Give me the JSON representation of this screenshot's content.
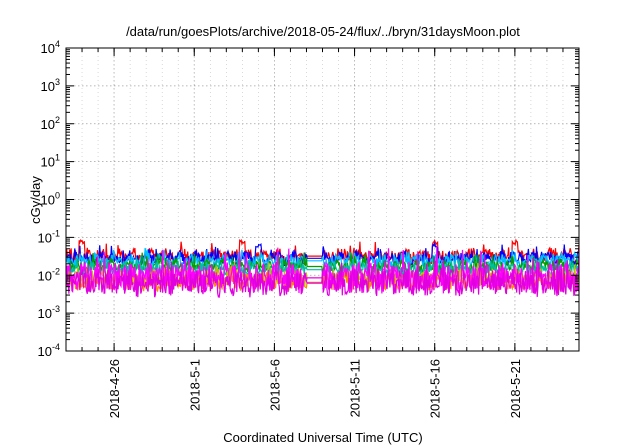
{
  "chart_data": {
    "type": "line",
    "title": "/data/run/goesPlots/archive/2018-05-24/flux/../bryn/31daysMoon.plot",
    "xlabel": "Coordinated Universal Time (UTC)",
    "ylabel": "cGy/day",
    "y_scale": "log",
    "ylim": [
      0.0001,
      10000
    ],
    "y_ticks": [
      {
        "value": 0.0001,
        "base": "10",
        "exp": "-4"
      },
      {
        "value": 0.001,
        "base": "10",
        "exp": "-3"
      },
      {
        "value": 0.01,
        "base": "10",
        "exp": "-2"
      },
      {
        "value": 0.1,
        "base": "10",
        "exp": "-1"
      },
      {
        "value": 1,
        "base": "10",
        "exp": "0"
      },
      {
        "value": 10,
        "base": "10",
        "exp": "1"
      },
      {
        "value": 100,
        "base": "10",
        "exp": "2"
      },
      {
        "value": 1000,
        "base": "10",
        "exp": "3"
      },
      {
        "value": 10000,
        "base": "10",
        "exp": "4"
      }
    ],
    "xlim": [
      "2018-04-23",
      "2018-05-25"
    ],
    "x_tick_labels": [
      "2018-4-26",
      "2018-5-1",
      "2018-5-6",
      "2018-5-11",
      "2018-5-16",
      "2018-5-21"
    ],
    "x_ticks": [
      "2018-04-26",
      "2018-05-01",
      "2018-05-06",
      "2018-05-11",
      "2018-05-16",
      "2018-05-21"
    ],
    "x_minor_ticks": [
      "2018-04-23",
      "2018-04-24",
      "2018-04-25",
      "2018-04-26",
      "2018-04-27",
      "2018-04-28",
      "2018-04-29",
      "2018-04-30",
      "2018-05-01",
      "2018-05-02",
      "2018-05-03",
      "2018-05-04",
      "2018-05-05",
      "2018-05-06",
      "2018-05-07",
      "2018-05-08",
      "2018-05-09",
      "2018-05-10",
      "2018-05-11",
      "2018-05-12",
      "2018-05-13",
      "2018-05-14",
      "2018-05-15",
      "2018-05-16",
      "2018-05-17",
      "2018-05-18",
      "2018-05-19",
      "2018-05-20",
      "2018-05-21",
      "2018-05-22",
      "2018-05-23",
      "2018-05-24",
      "2018-05-25"
    ],
    "grid": true,
    "data_gap": [
      "2018-05-08",
      "2018-05-09"
    ],
    "series": [
      {
        "color": "#ff0000",
        "level": 0.032,
        "noise": 0.16,
        "spikes": [
          "2018-04-24",
          "2018-05-04",
          "2018-05-16",
          "2018-05-21"
        ],
        "spike_level": 0.085
      },
      {
        "color": "#0000ff",
        "level": 0.028,
        "noise": 0.15,
        "spikes": [
          "2018-05-05",
          "2018-05-16"
        ],
        "spike_level": 0.07
      },
      {
        "color": "#00bfff",
        "level": 0.024,
        "noise": 0.14,
        "spikes": [],
        "spike_level": 0.05
      },
      {
        "color": "#00a000",
        "level": 0.017,
        "noise": 0.15,
        "spikes": [],
        "spike_level": 0.03
      },
      {
        "color": "#00c0a0",
        "level": 0.014,
        "noise": 0.15,
        "spikes": [],
        "spike_level": 0.03
      },
      {
        "color": "#c0c000",
        "level": 0.0085,
        "noise": 0.18,
        "spikes": [],
        "spike_level": 0.02
      },
      {
        "color": "#ff8c00",
        "level": 0.0065,
        "noise": 0.18,
        "spikes": [],
        "spike_level": 0.015
      },
      {
        "color": "#ff00ff",
        "level": 0.0085,
        "noise": 0.36,
        "spikes": [],
        "spike_level": 0.025
      },
      {
        "color": "#e000e0",
        "level": 0.0062,
        "noise": 0.32,
        "spikes": [],
        "spike_level": 0.02
      }
    ]
  }
}
